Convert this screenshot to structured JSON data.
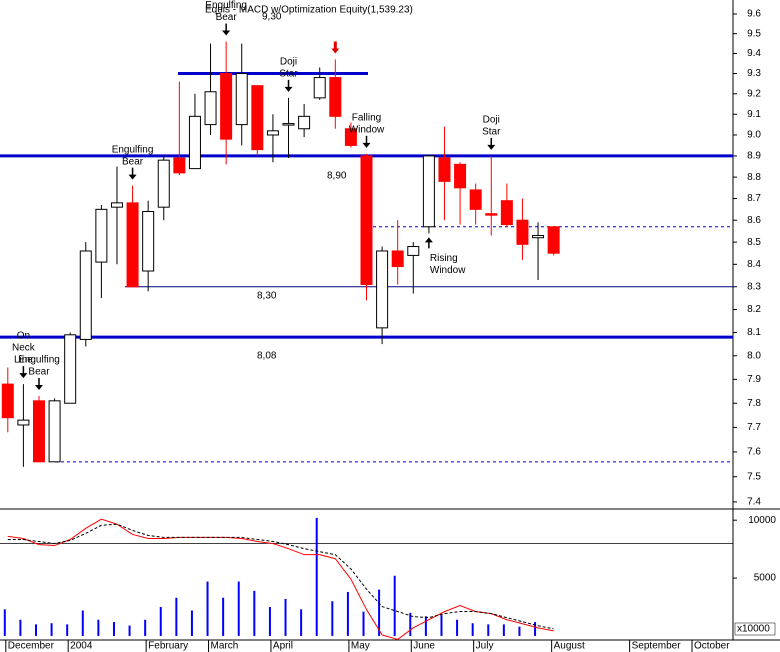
{
  "chart_data": [
    {
      "type": "candlestick",
      "title": "Equis - MACD  w/Optimization Equity(1,539.23)",
      "categories": [
        "December",
        null,
        null,
        null,
        "2004",
        null,
        null,
        null,
        null,
        "February",
        null,
        null,
        null,
        "March",
        null,
        null,
        null,
        "April",
        null,
        null,
        null,
        null,
        "May",
        null,
        null,
        null,
        "June",
        null,
        null,
        null,
        "July",
        null,
        null,
        null,
        null,
        "August",
        null,
        null,
        null,
        null,
        "September",
        null,
        null,
        null,
        "October",
        null,
        null
      ],
      "open": [
        7.88,
        7.71,
        7.81,
        7.56,
        7.8,
        8.07,
        8.41,
        8.66,
        8.68,
        8.37,
        8.66,
        8.89,
        8.84,
        9.05,
        9.3,
        9.05,
        9.24,
        9.0,
        9.05,
        9.03,
        9.18,
        9.28,
        9.03,
        8.9,
        8.12,
        8.46,
        8.44,
        8.57,
        8.89,
        8.86,
        8.74,
        8.63,
        8.69,
        8.6,
        8.52,
        8.57,
        null,
        null,
        null,
        null,
        null,
        null,
        null,
        null,
        null,
        null,
        null
      ],
      "high": [
        7.95,
        7.88,
        7.83,
        7.82,
        8.1,
        8.5,
        8.67,
        8.85,
        8.76,
        8.69,
        8.9,
        9.26,
        9.2,
        9.45,
        9.46,
        9.45,
        9.24,
        9.1,
        9.18,
        9.15,
        9.33,
        9.37,
        9.06,
        8.91,
        8.48,
        8.6,
        8.5,
        8.9,
        9.04,
        8.87,
        8.77,
        8.9,
        8.77,
        8.7,
        8.59,
        8.57,
        null,
        null,
        null,
        null,
        null,
        null,
        null,
        null,
        null,
        null,
        null
      ],
      "low": [
        7.68,
        7.54,
        7.56,
        7.56,
        7.8,
        8.04,
        8.25,
        8.4,
        8.3,
        8.28,
        8.6,
        8.81,
        8.84,
        9.0,
        8.86,
        8.95,
        8.9,
        8.87,
        8.89,
        8.99,
        9.17,
        9.03,
        8.94,
        8.24,
        8.05,
        8.31,
        8.27,
        8.54,
        8.6,
        8.58,
        8.58,
        8.53,
        8.57,
        8.42,
        8.33,
        8.44,
        null,
        null,
        null,
        null,
        null,
        null,
        null,
        null,
        null,
        null,
        null
      ],
      "close": [
        7.74,
        7.73,
        7.56,
        7.81,
        8.09,
        8.46,
        8.65,
        8.68,
        8.3,
        8.64,
        8.88,
        8.82,
        9.09,
        9.21,
        8.98,
        9.3,
        8.93,
        9.02,
        9.055,
        9.09,
        9.28,
        9.09,
        8.95,
        8.31,
        8.46,
        8.39,
        8.48,
        8.9,
        8.78,
        8.75,
        8.65,
        8.625,
        8.58,
        8.49,
        8.53,
        8.45,
        null,
        null,
        null,
        null,
        null,
        null,
        null,
        null,
        null,
        null,
        null
      ],
      "up_color": "#ffffff",
      "down_color": "#ff0000",
      "log_scale": true,
      "ylim": [
        7.376,
        9.672
      ],
      "yticks": [
        {
          "value": 7.4,
          "label": "7.4"
        },
        {
          "value": 7.5,
          "label": "7.5"
        },
        {
          "value": 7.6,
          "label": "7.6"
        },
        {
          "value": 7.7,
          "label": "7.7"
        },
        {
          "value": 7.8,
          "label": "7.8"
        },
        {
          "value": 7.9,
          "label": "7.9"
        },
        {
          "value": 8,
          "label": "8.0"
        },
        {
          "value": 8.1,
          "label": "8.1"
        },
        {
          "value": 8.2,
          "label": "8.2"
        },
        {
          "value": 8.3,
          "label": "8.3"
        },
        {
          "value": 8.4,
          "label": "8.4"
        },
        {
          "value": 8.5,
          "label": "8.5"
        },
        {
          "value": 8.6,
          "label": "8.6"
        },
        {
          "value": 8.7,
          "label": "8.7"
        },
        {
          "value": 8.8,
          "label": "8.8"
        },
        {
          "value": 8.9,
          "label": "8.9"
        },
        {
          "value": 9,
          "label": "9.0"
        },
        {
          "value": 9.1,
          "label": "9.1"
        },
        {
          "value": 9.2,
          "label": "9.2"
        },
        {
          "value": 9.3,
          "label": "9.3"
        },
        {
          "value": 9.4,
          "label": "9.4"
        },
        {
          "value": 9.5,
          "label": "9.5"
        },
        {
          "value": 9.6,
          "label": "9.6"
        }
      ],
      "levels": [
        {
          "value": 9.3,
          "label": "9,30",
          "style": "thick",
          "color": "#0000cc"
        },
        {
          "value": 8.9,
          "label": "8,90",
          "style": "thick",
          "color": "#0000cc"
        },
        {
          "value": 8.3,
          "label": "8,30",
          "style": "thin",
          "color": "#000080"
        },
        {
          "value": 8.08,
          "label": "8,08",
          "style": "thick",
          "color": "#0000cc"
        },
        {
          "value": 7.56,
          "style": "dashed",
          "color": "#0000cc"
        },
        {
          "value": 8.57,
          "style": "dashed",
          "color": "#0000cc"
        }
      ],
      "annotations": [
        {
          "index": 1,
          "lines": [
            "On",
            "Neck",
            "Line"
          ],
          "arrow": "down"
        },
        {
          "index": 2,
          "lines": [
            "Engulfing",
            "Bear"
          ],
          "arrow": "down"
        },
        {
          "index": 8,
          "lines": [
            "Engulfing",
            "Bear"
          ],
          "arrow": "down"
        },
        {
          "index": 14,
          "lines": [
            "Engulfing",
            "Bear"
          ],
          "arrow": "down"
        },
        {
          "index": 18,
          "lines": [
            "Doji",
            "Star"
          ],
          "arrow": "down"
        },
        {
          "index": 21,
          "arrow": "down",
          "color": "#e00000"
        },
        {
          "index": 23,
          "lines": [
            "Falling",
            "Window"
          ],
          "arrow": "down"
        },
        {
          "index": 27,
          "lines": [
            "Rising",
            "Window"
          ],
          "arrow": "up"
        },
        {
          "index": 31,
          "lines": [
            "Doji",
            "Star"
          ],
          "arrow": "down"
        }
      ]
    },
    {
      "type": "volume-macd",
      "y_unit_label": "x10000",
      "ylim": [
        -350,
        10880
      ],
      "yticks": [
        5000,
        10000
      ],
      "hline": 8000,
      "series": [
        {
          "name": "Volume",
          "kind": "bar",
          "color": "#0000ff",
          "values": [
            2300,
            1400,
            1000,
            1100,
            1000,
            2200,
            1400,
            1200,
            900,
            1400,
            2500,
            3300,
            2200,
            4700,
            3300,
            4700,
            3900,
            2500,
            3200,
            2300,
            10200,
            3000,
            3800,
            2100,
            4000,
            5200,
            2000,
            1700,
            1800,
            1400,
            1100,
            1000,
            1000,
            800,
            1200,
            null,
            null,
            null,
            null,
            null,
            null,
            null,
            null,
            null,
            null,
            null,
            null
          ]
        },
        {
          "name": "MACD",
          "kind": "line",
          "color": "#ff0000",
          "values": [
            8600,
            8420,
            7890,
            7810,
            8330,
            9300,
            10090,
            9650,
            8770,
            8420,
            8420,
            8510,
            8510,
            8510,
            8510,
            8420,
            8160,
            7980,
            7540,
            7020,
            7020,
            6670,
            4910,
            2280,
            90,
            -300,
            700,
            1400,
            2100,
            2630,
            2100,
            1930,
            1400,
            1050,
            700,
            440,
            null,
            null,
            null,
            null,
            null,
            null,
            null,
            null,
            null,
            null,
            null
          ]
        },
        {
          "name": "Signal",
          "kind": "dashed",
          "color": "#000000",
          "values": [
            8330,
            8330,
            8160,
            7980,
            8250,
            8860,
            9560,
            9650,
            9120,
            8680,
            8510,
            8510,
            8510,
            8510,
            8510,
            8510,
            8330,
            8160,
            7890,
            7540,
            7280,
            7020,
            5790,
            4040,
            2540,
            2110,
            1670,
            1580,
            1930,
            2110,
            2110,
            1930,
            1580,
            1230,
            880,
            610,
            null,
            null,
            null,
            null,
            null,
            null,
            null,
            null,
            null,
            null,
            null
          ]
        }
      ]
    }
  ]
}
